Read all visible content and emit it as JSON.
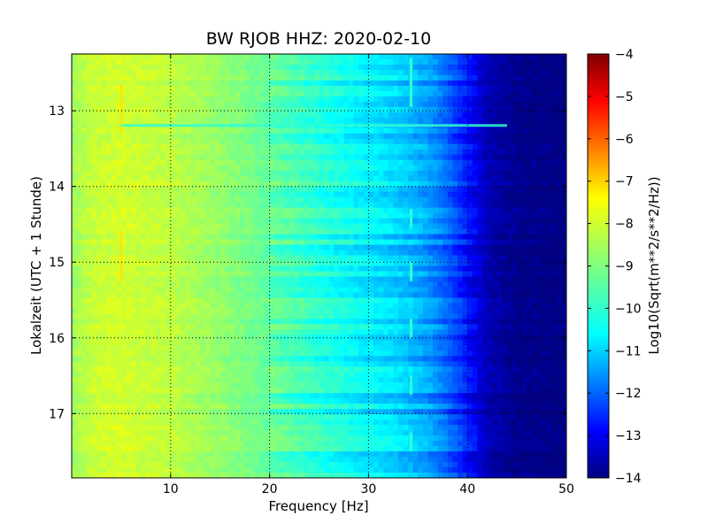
{
  "chart_data": {
    "type": "heatmap",
    "title": "BW RJOB HHZ: 2020-02-10",
    "xlabel": "Frequency [Hz]",
    "ylabel": "Lokalzeit (UTC + 1 Stunde)",
    "colorbar_label": "Log10(Sqrt(m**2/s**2/Hz))",
    "xlim": [
      0,
      50
    ],
    "ylim": [
      12.25,
      17.85
    ],
    "y_inverted": true,
    "clim": [
      -14,
      -4
    ],
    "colormap": "jet",
    "grid": true,
    "x_ticks": [
      10,
      20,
      30,
      40,
      50
    ],
    "x_tick_labels": [
      "10",
      "20",
      "30",
      "40",
      "50"
    ],
    "y_ticks": [
      13,
      14,
      15,
      16,
      17
    ],
    "y_tick_labels": [
      "13",
      "14",
      "15",
      "16",
      "17"
    ],
    "colorbar_ticks": [
      -4,
      -5,
      -6,
      -7,
      -8,
      -9,
      -10,
      -11,
      -12,
      -13,
      -14
    ],
    "colorbar_tick_labels": [
      "−4",
      "−5",
      "−6",
      "−7",
      "−8",
      "−9",
      "−10",
      "−11",
      "−12",
      "−13",
      "−14"
    ],
    "spectrum_profile": {
      "frequency_hz": [
        0,
        2,
        5,
        10,
        15,
        20,
        25,
        30,
        33,
        36,
        38,
        40,
        42,
        45,
        50
      ],
      "log10_amplitude": [
        -8.7,
        -8.3,
        -8.2,
        -8.4,
        -8.8,
        -9.3,
        -9.9,
        -10.4,
        -10.7,
        -11.2,
        -11.8,
        -12.6,
        -13.5,
        -13.9,
        -14.0
      ]
    },
    "features": [
      {
        "frequency_hz": 5,
        "time_start": 12.65,
        "time_end": 13.3,
        "log10_amplitude": -7.5
      },
      {
        "frequency_hz": 5,
        "time_start": 14.6,
        "time_end": 15.25,
        "log10_amplitude": -7.5
      },
      {
        "frequency_hz": 34.3,
        "time_start": 12.3,
        "time_end": 12.95,
        "log10_amplitude": -9.8
      },
      {
        "frequency_hz": 34.3,
        "time_start": 14.3,
        "time_end": 14.55,
        "log10_amplitude": -9.8
      },
      {
        "frequency_hz": 34.3,
        "time_start": 15.0,
        "time_end": 15.25,
        "log10_amplitude": -9.8
      },
      {
        "frequency_hz": 34.3,
        "time_start": 15.75,
        "time_end": 16.0,
        "log10_amplitude": -9.8
      },
      {
        "frequency_hz": 34.3,
        "time_start": 16.5,
        "time_end": 16.75,
        "log10_amplitude": -9.8
      },
      {
        "frequency_hz": 34.3,
        "time_start": 17.25,
        "time_end": 17.5,
        "log10_amplitude": -9.8
      }
    ],
    "noise_band": {
      "time": 13.2,
      "frequency_range": [
        5,
        44
      ],
      "log10_amplitude": -9.8
    }
  }
}
